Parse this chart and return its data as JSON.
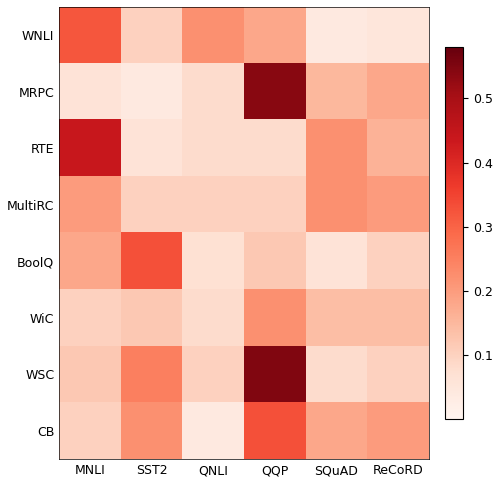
{
  "rows": [
    "WNLI",
    "MRPC",
    "RTE",
    "MultiRC",
    "BoolQ",
    "WiC",
    "WSC",
    "CB"
  ],
  "cols": [
    "MNLI",
    "SST2",
    "QNLI",
    "QQP",
    "SQuAD",
    "ReCoRD"
  ],
  "values": [
    [
      0.32,
      0.1,
      0.22,
      0.18,
      0.04,
      0.05
    ],
    [
      0.06,
      0.04,
      0.08,
      0.54,
      0.15,
      0.18
    ],
    [
      0.44,
      0.06,
      0.08,
      0.08,
      0.22,
      0.16
    ],
    [
      0.2,
      0.1,
      0.1,
      0.1,
      0.22,
      0.2
    ],
    [
      0.18,
      0.33,
      0.07,
      0.12,
      0.06,
      0.1
    ],
    [
      0.1,
      0.12,
      0.08,
      0.22,
      0.14,
      0.14
    ],
    [
      0.12,
      0.25,
      0.1,
      0.55,
      0.08,
      0.1
    ],
    [
      0.1,
      0.22,
      0.04,
      0.33,
      0.18,
      0.2
    ]
  ],
  "vmin": 0.0,
  "vmax": 0.58,
  "cmap": "Reds",
  "colorbar_ticks": [
    0.1,
    0.2,
    0.3,
    0.4,
    0.5
  ],
  "figsize": [
    5.0,
    4.84
  ],
  "dpi": 100
}
